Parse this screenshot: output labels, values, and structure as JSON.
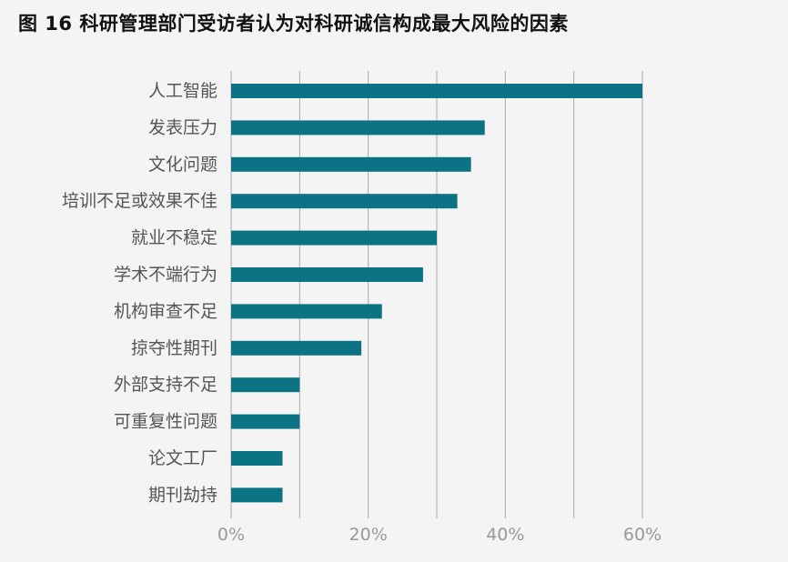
{
  "chart_data": {
    "type": "bar",
    "orientation": "horizontal",
    "title": "图 16 科研管理部门受访者认为对科研诚信构成最大风险的因素",
    "xlabel": "",
    "ylabel": "",
    "categories": [
      "人工智能",
      "发表压力",
      "文化问题",
      "培训不足或效果不佳",
      "就业不稳定",
      "学术不端行为",
      "机构审查不足",
      "掠夺性期刊",
      "外部支持不足",
      "可重复性问题",
      "论文工厂",
      "期刊劫持"
    ],
    "values": [
      60,
      37,
      35,
      33,
      30,
      28,
      22,
      19,
      10,
      10,
      7.5,
      7.5
    ],
    "xlim": [
      0,
      60
    ],
    "xticks": [
      0,
      20,
      40,
      60
    ],
    "xtick_labels": [
      "0%",
      "20%",
      "40%",
      "60%"
    ],
    "grid": true,
    "bar_color": "#0b7383",
    "grid_color": "#aaaaaa",
    "background": "#f4f4f4"
  }
}
